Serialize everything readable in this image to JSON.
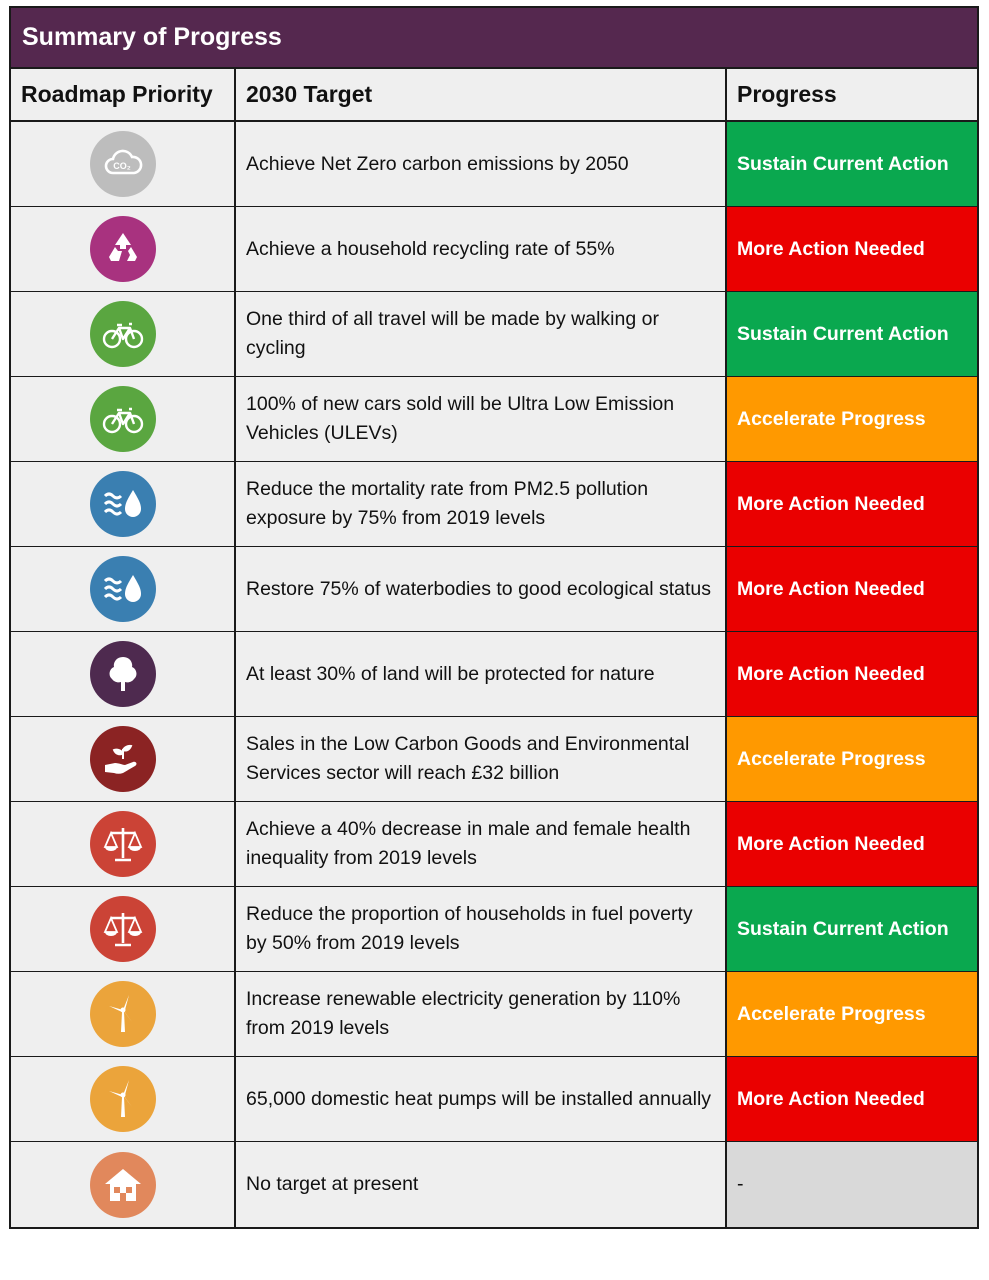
{
  "title": "Summary of Progress",
  "headers": {
    "priority": "Roadmap Priority",
    "target": "2030 Target",
    "progress": "Progress"
  },
  "rows": [
    {
      "icon": "co2-cloud-icon",
      "icon_color": "#bdbdbd",
      "target": "Achieve Net Zero carbon emissions by 2050",
      "progress": "Sustain Current Action",
      "progress_color": "#0aa84f"
    },
    {
      "icon": "recycle-icon",
      "icon_color": "#a8327f",
      "target": "Achieve a household recycling rate of 55%",
      "progress": "More Action Needed",
      "progress_color": "#ea0000"
    },
    {
      "icon": "bicycle-icon",
      "icon_color": "#5aa640",
      "target": "One third of all travel will be made by walking or cycling",
      "progress": "Sustain Current Action",
      "progress_color": "#0aa84f"
    },
    {
      "icon": "bicycle-icon",
      "icon_color": "#5aa640",
      "target": "100% of new cars sold will be Ultra Low Emission Vehicles (ULEVs)",
      "progress": "Accelerate Progress",
      "progress_color": "#ff9900"
    },
    {
      "icon": "air-water-icon",
      "icon_color": "#3a7fb1",
      "target": "Reduce the mortality rate from PM2.5 pollution exposure by 75% from 2019 levels",
      "progress": "More Action Needed",
      "progress_color": "#ea0000"
    },
    {
      "icon": "air-water-icon",
      "icon_color": "#3a7fb1",
      "target": "Restore 75% of waterbodies to good ecological status",
      "progress": "More Action Needed",
      "progress_color": "#ea0000"
    },
    {
      "icon": "tree-icon",
      "icon_color": "#4e2a4f",
      "target": "At least 30% of land will be protected for nature",
      "progress": "More Action Needed",
      "progress_color": "#ea0000"
    },
    {
      "icon": "hand-seedling-icon",
      "icon_color": "#8b2323",
      "target": "Sales in the Low Carbon Goods and Environmental Services sector will reach £32 billion",
      "progress": "Accelerate Progress",
      "progress_color": "#ff9900"
    },
    {
      "icon": "scales-icon",
      "icon_color": "#cb4336",
      "target": "Achieve a 40% decrease in male and female health inequality from 2019 levels",
      "progress": "More Action Needed",
      "progress_color": "#ea0000"
    },
    {
      "icon": "scales-icon",
      "icon_color": "#cb4336",
      "target": "Reduce the proportion of households in fuel poverty by 50% from 2019 levels",
      "progress": "Sustain Current Action",
      "progress_color": "#0aa84f"
    },
    {
      "icon": "wind-turbine-icon",
      "icon_color": "#eba43b",
      "target": "Increase renewable electricity generation by 110% from 2019 levels",
      "progress": "Accelerate Progress",
      "progress_color": "#ff9900"
    },
    {
      "icon": "wind-turbine-icon",
      "icon_color": "#eba43b",
      "target": "65,000 domestic heat pumps will be installed annually",
      "progress": "More Action Needed",
      "progress_color": "#ea0000"
    },
    {
      "icon": "house-icon",
      "icon_color": "#e1885c",
      "target": "No target at present",
      "progress": "-",
      "progress_color": "#d9d9d9"
    }
  ]
}
